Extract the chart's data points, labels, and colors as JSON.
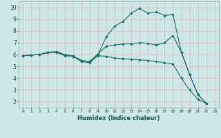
{
  "xlabel": "Humidex (Indice chaleur)",
  "background_color": "#cce8e8",
  "plot_bg_color": "#cce8e8",
  "grid_color": "#e8b8b8",
  "line_color": "#1a6b6b",
  "xlim": [
    -0.5,
    23.5
  ],
  "ylim": [
    1.5,
    10.5
  ],
  "xticks": [
    0,
    1,
    2,
    3,
    4,
    5,
    6,
    7,
    8,
    9,
    10,
    11,
    12,
    13,
    14,
    15,
    16,
    17,
    18,
    19,
    20,
    21,
    22,
    23
  ],
  "yticks": [
    2,
    3,
    4,
    5,
    6,
    7,
    8,
    9,
    10
  ],
  "series1_x": [
    0,
    1,
    2,
    3,
    4,
    5,
    6,
    7,
    8,
    9,
    10,
    11,
    12,
    13,
    14,
    15,
    16,
    17,
    18,
    19,
    20,
    21,
    22
  ],
  "series1_y": [
    5.9,
    5.95,
    6.0,
    6.2,
    6.25,
    6.0,
    5.9,
    5.5,
    5.4,
    6.05,
    6.7,
    6.8,
    6.9,
    6.9,
    7.0,
    6.95,
    6.8,
    7.0,
    7.6,
    6.2,
    4.3,
    2.6,
    1.85
  ],
  "series2_x": [
    0,
    1,
    2,
    3,
    4,
    5,
    6,
    7,
    8,
    9,
    10,
    11,
    12,
    13,
    14,
    15,
    16,
    17,
    18,
    19,
    20,
    21,
    22
  ],
  "series2_y": [
    5.9,
    5.95,
    6.0,
    6.15,
    6.2,
    5.95,
    5.85,
    5.5,
    5.4,
    6.0,
    7.5,
    8.4,
    8.8,
    9.5,
    9.9,
    9.5,
    9.6,
    9.3,
    9.4,
    6.2,
    4.3,
    2.6,
    1.85
  ],
  "series3_x": [
    0,
    1,
    2,
    3,
    4,
    5,
    6,
    7,
    8,
    9,
    10,
    11,
    12,
    13,
    14,
    15,
    16,
    17,
    18,
    19,
    20,
    21,
    22
  ],
  "series3_y": [
    5.9,
    5.95,
    6.0,
    6.15,
    6.2,
    5.9,
    5.85,
    5.4,
    5.3,
    5.9,
    5.85,
    5.7,
    5.65,
    5.6,
    5.55,
    5.5,
    5.4,
    5.3,
    5.2,
    4.0,
    3.0,
    2.2,
    1.85
  ]
}
